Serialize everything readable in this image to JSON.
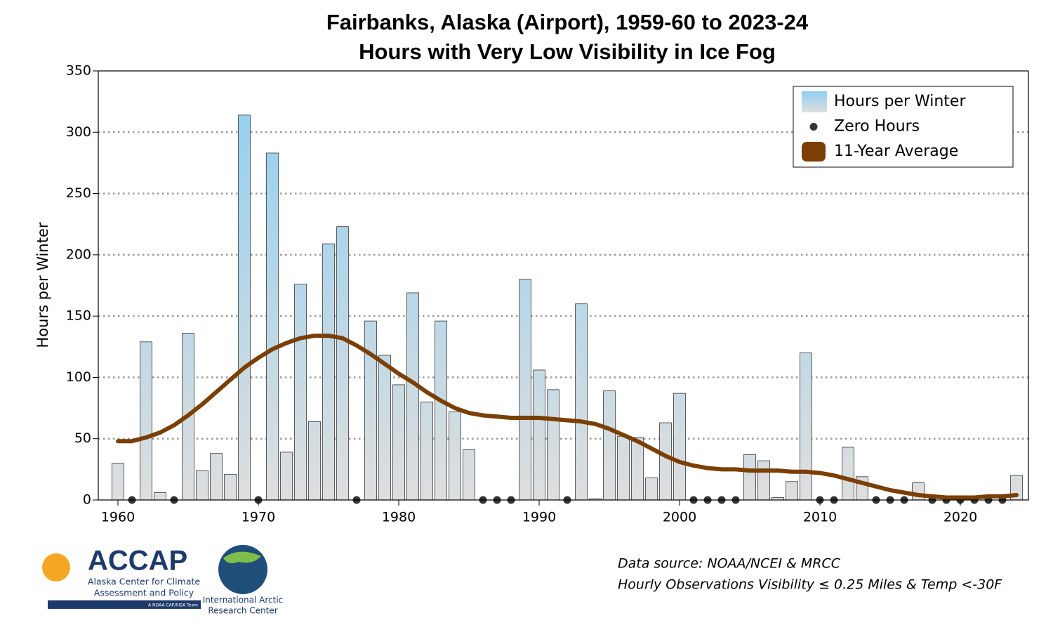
{
  "chart_data": {
    "type": "bar",
    "title": "Fairbanks, Alaska (Airport), 1959-60 to 2023-24",
    "subtitle": "Hours with Very Low Visibility in Ice Fog",
    "y_label": "Hours per Winter",
    "x": [
      1960,
      1961,
      1962,
      1963,
      1964,
      1965,
      1966,
      1967,
      1968,
      1969,
      1970,
      1971,
      1972,
      1973,
      1974,
      1975,
      1976,
      1977,
      1978,
      1979,
      1980,
      1981,
      1982,
      1983,
      1984,
      1985,
      1986,
      1987,
      1988,
      1989,
      1990,
      1991,
      1992,
      1993,
      1994,
      1995,
      1996,
      1997,
      1998,
      1999,
      2000,
      2001,
      2002,
      2003,
      2004,
      2005,
      2006,
      2007,
      2008,
      2009,
      2010,
      2011,
      2012,
      2013,
      2014,
      2015,
      2016,
      2017,
      2018,
      2019,
      2020,
      2021,
      2022,
      2023,
      2024
    ],
    "series": [
      {
        "name": "Hours per Winter",
        "type": "bar",
        "color": "#8ecff2",
        "color_bottom": "#dedede",
        "values": [
          30,
          0,
          129,
          6,
          0,
          136,
          24,
          38,
          21,
          314,
          0,
          283,
          39,
          176,
          64,
          209,
          223,
          0,
          146,
          118,
          94,
          169,
          80,
          146,
          72,
          41,
          0,
          0,
          0,
          180,
          106,
          90,
          0,
          160,
          1,
          89,
          52,
          51,
          18,
          63,
          87,
          0,
          0,
          0,
          0,
          37,
          32,
          2,
          15,
          120,
          0,
          0,
          43,
          19,
          0,
          0,
          0,
          14,
          0,
          0,
          0,
          0,
          0,
          0,
          20
        ]
      },
      {
        "name": "Zero Hours",
        "type": "scatter",
        "color": "#333333",
        "values": [
          null,
          0,
          null,
          null,
          0,
          null,
          null,
          null,
          null,
          null,
          0,
          null,
          null,
          null,
          null,
          null,
          null,
          0,
          null,
          null,
          null,
          null,
          null,
          null,
          null,
          null,
          0,
          0,
          0,
          null,
          null,
          null,
          0,
          null,
          null,
          null,
          null,
          null,
          null,
          null,
          null,
          0,
          0,
          0,
          0,
          null,
          null,
          null,
          null,
          null,
          0,
          0,
          null,
          null,
          0,
          0,
          0,
          null,
          0,
          0,
          0,
          0,
          0,
          0,
          null
        ]
      },
      {
        "name": "11-Year Average",
        "type": "line",
        "color": "#7b3f05",
        "values": [
          48,
          48,
          51,
          55,
          61,
          69,
          78,
          88,
          98,
          108,
          116,
          123,
          128,
          132,
          134,
          134,
          132,
          126,
          119,
          111,
          103,
          96,
          88,
          81,
          75,
          71,
          69,
          68,
          67,
          67,
          67,
          66,
          65,
          64,
          62,
          58,
          53,
          48,
          42,
          36,
          31,
          28,
          26,
          25,
          25,
          24,
          24,
          24,
          23,
          23,
          22,
          20,
          17,
          14,
          11,
          8,
          6,
          4,
          3,
          2,
          2,
          2,
          3,
          3,
          4
        ]
      }
    ],
    "xlim": [
      1958.6,
      2024.85
    ],
    "xticks": [
      1960,
      1970,
      1980,
      1990,
      2000,
      2010,
      2020
    ],
    "ylim": [
      0,
      350
    ],
    "yticks": [
      0,
      50,
      100,
      150,
      200,
      250,
      300,
      350
    ],
    "grid": true,
    "legend": "upper right"
  },
  "footer": {
    "source": "Data source: NOAA/NCEI & MRCC",
    "note": "Hourly Observations Visibility ≤ 0.25 Miles & Temp <-30F"
  },
  "logos": {
    "accap": "ACCAP",
    "accap_line1": "Alaska Center for Climate",
    "accap_line2": "Assessment and Policy",
    "accap_tag": "A NOAA CAP/RISA Team",
    "iarc_line1": "International Arctic",
    "iarc_line2": "Research Center"
  }
}
